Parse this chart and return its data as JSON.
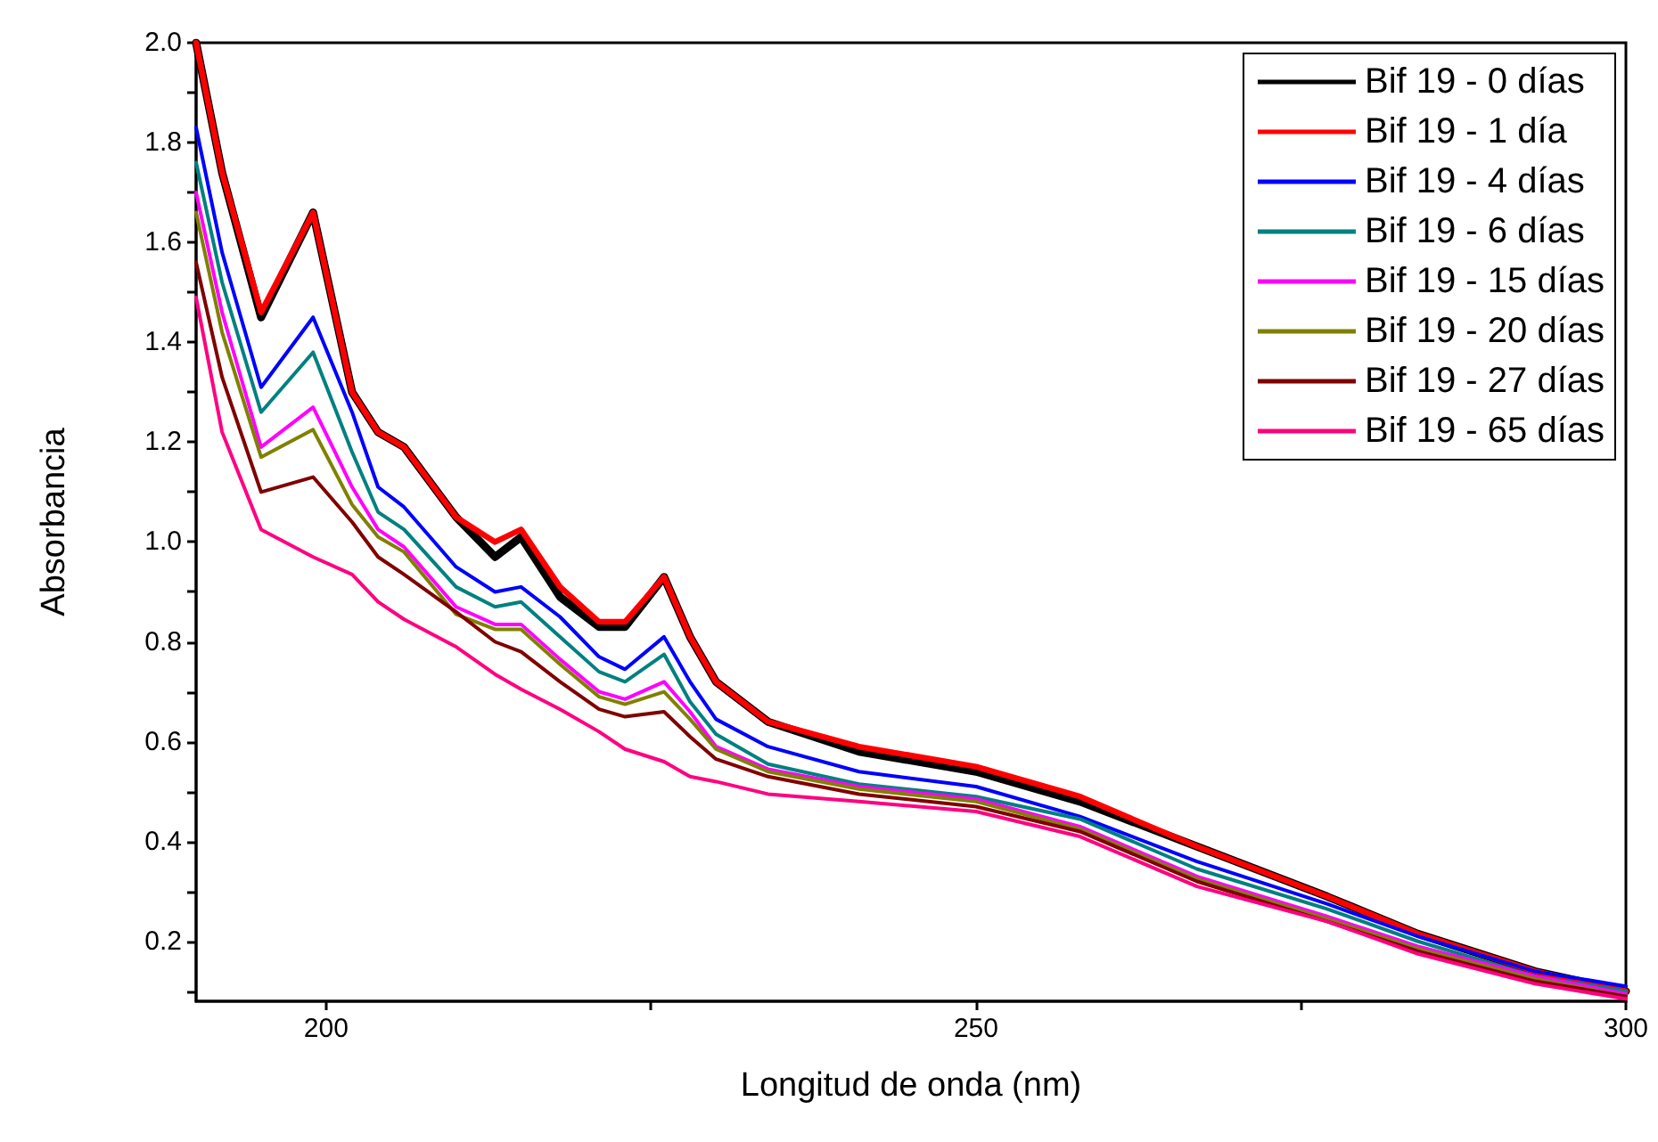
{
  "chart_data": {
    "type": "line",
    "xlabel": "Longitud de onda (nm)",
    "ylabel": "Absorbancia",
    "x": [
      190,
      192,
      195,
      199,
      202,
      204,
      206,
      210,
      213,
      215,
      218,
      221,
      223,
      226,
      228,
      230,
      234,
      241,
      250,
      258,
      267,
      277,
      284,
      293,
      300
    ],
    "series": [
      {
        "name": "Bif 19 - 0 días",
        "color": "#000000",
        "values": [
          2.0,
          1.74,
          1.45,
          1.66,
          1.3,
          1.22,
          1.19,
          1.05,
          0.97,
          1.01,
          0.89,
          0.83,
          0.83,
          0.93,
          0.81,
          0.72,
          0.64,
          0.58,
          0.54,
          0.48,
          0.39,
          0.29,
          0.215,
          0.14,
          0.1
        ]
      },
      {
        "name": "Bif 19 - 1 día",
        "color": "#ff0000",
        "values": [
          2.0,
          1.74,
          1.46,
          1.66,
          1.3,
          1.22,
          1.19,
          1.05,
          1.0,
          1.025,
          0.91,
          0.84,
          0.84,
          0.93,
          0.81,
          0.72,
          0.64,
          0.59,
          0.55,
          0.49,
          0.39,
          0.29,
          0.215,
          0.14,
          0.1
        ]
      },
      {
        "name": "Bif 19 - 4 días",
        "color": "#0000ff",
        "values": [
          1.83,
          1.58,
          1.31,
          1.45,
          1.26,
          1.11,
          1.07,
          0.95,
          0.9,
          0.91,
          0.85,
          0.77,
          0.745,
          0.81,
          0.72,
          0.645,
          0.59,
          0.54,
          0.51,
          0.45,
          0.36,
          0.275,
          0.21,
          0.14,
          0.11
        ]
      },
      {
        "name": "Bif 19 - 6 días",
        "color": "#008080",
        "values": [
          1.76,
          1.52,
          1.26,
          1.38,
          1.18,
          1.06,
          1.025,
          0.91,
          0.87,
          0.88,
          0.81,
          0.74,
          0.72,
          0.775,
          0.68,
          0.615,
          0.555,
          0.515,
          0.49,
          0.445,
          0.345,
          0.265,
          0.2,
          0.13,
          0.1
        ]
      },
      {
        "name": "Bif 19 - 15 días",
        "color": "#ff00ff",
        "values": [
          1.7,
          1.46,
          1.19,
          1.27,
          1.11,
          1.025,
          0.99,
          0.87,
          0.835,
          0.835,
          0.765,
          0.7,
          0.685,
          0.72,
          0.66,
          0.59,
          0.545,
          0.51,
          0.485,
          0.43,
          0.33,
          0.25,
          0.19,
          0.13,
          0.095
        ]
      },
      {
        "name": "Bif 19 - 20 días",
        "color": "#808000",
        "values": [
          1.66,
          1.42,
          1.17,
          1.225,
          1.075,
          1.01,
          0.98,
          0.855,
          0.825,
          0.825,
          0.755,
          0.69,
          0.675,
          0.7,
          0.645,
          0.585,
          0.54,
          0.505,
          0.48,
          0.425,
          0.325,
          0.245,
          0.185,
          0.125,
          0.09
        ]
      },
      {
        "name": "Bif 19 - 27 días",
        "color": "#800000",
        "values": [
          1.56,
          1.33,
          1.1,
          1.13,
          1.04,
          0.97,
          0.935,
          0.86,
          0.8,
          0.78,
          0.72,
          0.665,
          0.65,
          0.66,
          0.61,
          0.565,
          0.53,
          0.495,
          0.47,
          0.42,
          0.32,
          0.24,
          0.18,
          0.12,
          0.09
        ]
      },
      {
        "name": "Bif 19 - 65 días",
        "color": "#ff0080",
        "values": [
          1.49,
          1.22,
          1.025,
          0.97,
          0.935,
          0.88,
          0.845,
          0.79,
          0.735,
          0.705,
          0.665,
          0.62,
          0.585,
          0.56,
          0.53,
          0.52,
          0.495,
          0.48,
          0.46,
          0.41,
          0.31,
          0.24,
          0.175,
          0.115,
          0.085
        ]
      }
    ],
    "xlim": [
      190,
      300
    ],
    "xticks": [
      200,
      {
        "value": 225,
        "label": null
      },
      250,
      {
        "value": 275,
        "label": null
      },
      300
    ],
    "ylim": [
      0.08,
      2.0
    ],
    "yticks": [
      {
        "value": 0.1,
        "label": null
      },
      0.2,
      {
        "value": 0.3,
        "label": null
      },
      0.4,
      {
        "value": 0.5,
        "label": null
      },
      0.6,
      {
        "value": 0.7,
        "label": null
      },
      0.8,
      {
        "value": 0.9,
        "label": null
      },
      {
        "value": 1.0,
        "label": "1.0"
      },
      {
        "value": 1.1,
        "label": null
      },
      1.2,
      {
        "value": 1.3,
        "label": null
      },
      1.4,
      {
        "value": 1.5,
        "label": null
      },
      1.6,
      {
        "value": 1.7,
        "label": null
      },
      1.8,
      {
        "value": 1.9,
        "label": null
      },
      {
        "value": 2.0,
        "label": "2.0"
      }
    ],
    "grid": false,
    "legend": "top right",
    "marker": "none",
    "line_style": "solid"
  }
}
